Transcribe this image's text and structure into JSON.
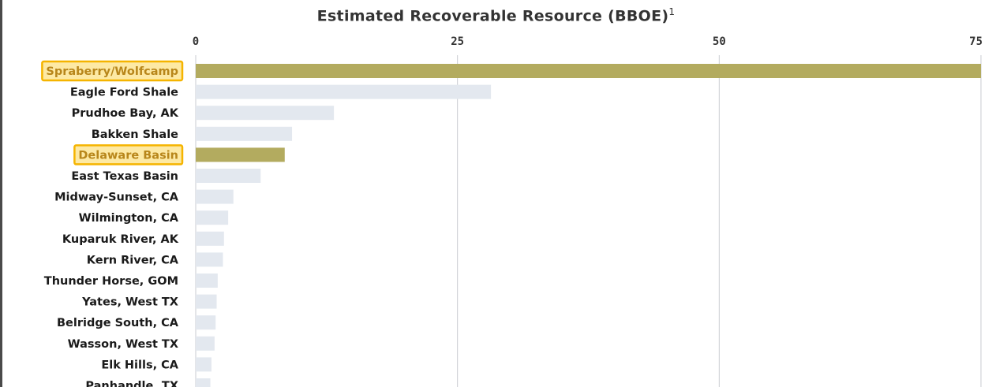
{
  "chart_data": {
    "type": "bar",
    "orientation": "horizontal",
    "title": "Estimated Recoverable Resource (BBOE)",
    "title_superscript": "1",
    "xlim": [
      0,
      75
    ],
    "xticks": [
      0,
      25,
      50,
      75
    ],
    "grid": true,
    "categories": [
      "Spraberry/Wolfcamp",
      "Eagle Ford Shale",
      "Prudhoe Bay, AK",
      "Bakken Shale",
      "Delaware Basin",
      "East Texas Basin",
      "Midway-Sunset, CA",
      "Wilmington, CA",
      "Kuparuk River, AK",
      "Kern River, CA",
      "Thunder Horse, GOM",
      "Yates, West TX",
      "Belridge South, CA",
      "Wasson, West TX",
      "Elk Hills, CA",
      "Panhandle, TX"
    ],
    "values": [
      75,
      28.2,
      13.2,
      9.2,
      8.5,
      6.2,
      3.6,
      3.1,
      2.7,
      2.6,
      2.1,
      2.0,
      1.9,
      1.8,
      1.5,
      1.4
    ],
    "highlighted": [
      "Spraberry/Wolfcamp",
      "Delaware Basin"
    ],
    "colors": {
      "highlight_bar": "#b3ab5f",
      "bar": "#e3e8ef",
      "highlight_box_fill": "#fde9a4",
      "highlight_box_border": "#f5b400",
      "grid": "#c9cbd1"
    }
  }
}
